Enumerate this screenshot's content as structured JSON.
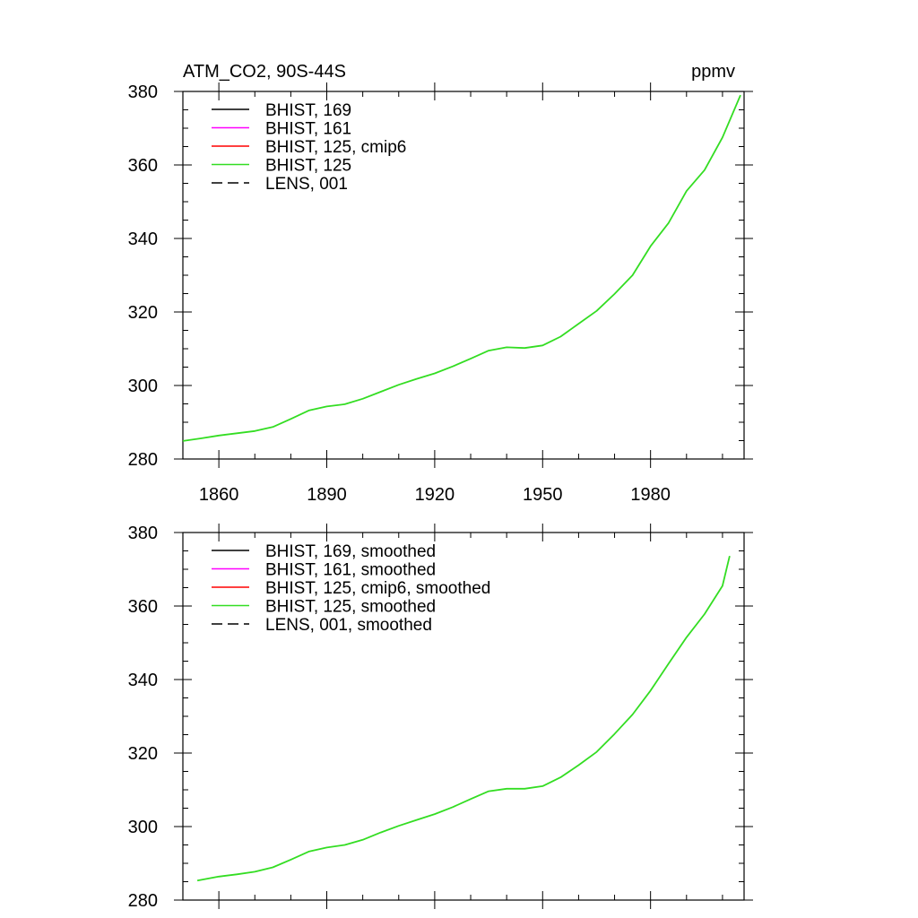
{
  "chart_data": [
    {
      "type": "line",
      "title_left": "ATM_CO2, 90S-44S",
      "title_right": "ppmv",
      "xlim": [
        1850,
        2006
      ],
      "ylim": [
        280,
        380
      ],
      "xticks": [
        1860,
        1890,
        1920,
        1950,
        1980
      ],
      "yticks": [
        280,
        300,
        320,
        340,
        360,
        380
      ],
      "x_tick_labels_shown": true,
      "legend": [
        {
          "label": "BHIST, 169",
          "color": "#000000",
          "dash": "solid"
        },
        {
          "label": "BHIST, 161",
          "color": "#ff00ff",
          "dash": "solid"
        },
        {
          "label": "BHIST, 125, cmip6",
          "color": "#ff0000",
          "dash": "solid"
        },
        {
          "label": "BHIST, 125",
          "color": "#33dd22",
          "dash": "solid"
        },
        {
          "label": "LENS, 001",
          "color": "#000000",
          "dash": "dashed"
        }
      ],
      "series": [
        {
          "name": "BHIST, 125",
          "color": "#33dd22",
          "x": [
            1850,
            1855,
            1860,
            1865,
            1870,
            1875,
            1880,
            1885,
            1890,
            1895,
            1900,
            1905,
            1910,
            1915,
            1920,
            1925,
            1930,
            1935,
            1940,
            1945,
            1950,
            1955,
            1960,
            1965,
            1970,
            1975,
            1980,
            1985,
            1990,
            1995,
            2000,
            2005
          ],
          "y": [
            284.9,
            285.6,
            286.4,
            287.0,
            287.6,
            288.7,
            290.9,
            293.2,
            294.3,
            294.9,
            296.4,
            298.3,
            300.2,
            301.8,
            303.3,
            305.2,
            307.3,
            309.5,
            310.4,
            310.2,
            310.9,
            313.3,
            316.8,
            320.3,
            324.9,
            330.0,
            337.9,
            344.2,
            352.9,
            358.6,
            367.5,
            379.0
          ]
        }
      ]
    },
    {
      "type": "line",
      "title_left": "",
      "title_right": "",
      "xlim": [
        1850,
        2006
      ],
      "ylim": [
        280,
        380
      ],
      "xticks": [
        1860,
        1890,
        1920,
        1950,
        1980
      ],
      "yticks": [
        280,
        300,
        320,
        340,
        360,
        380
      ],
      "x_tick_labels_shown": false,
      "legend": [
        {
          "label": "BHIST, 169, smoothed",
          "color": "#000000",
          "dash": "solid"
        },
        {
          "label": "BHIST, 161, smoothed",
          "color": "#ff00ff",
          "dash": "solid"
        },
        {
          "label": "BHIST, 125, cmip6, smoothed",
          "color": "#ff0000",
          "dash": "solid"
        },
        {
          "label": "BHIST, 125, smoothed",
          "color": "#33dd22",
          "dash": "solid"
        },
        {
          "label": "LENS, 001, smoothed",
          "color": "#000000",
          "dash": "dashed"
        }
      ],
      "series": [
        {
          "name": "BHIST, 125, smoothed",
          "color": "#33dd22",
          "x": [
            1854,
            1860,
            1865,
            1870,
            1875,
            1880,
            1885,
            1890,
            1895,
            1900,
            1905,
            1910,
            1915,
            1920,
            1925,
            1930,
            1935,
            1940,
            1945,
            1950,
            1955,
            1960,
            1965,
            1970,
            1975,
            1980,
            1985,
            1990,
            1995,
            2000,
            2002
          ],
          "y": [
            285.3,
            286.4,
            287.0,
            287.7,
            288.9,
            291.0,
            293.2,
            294.3,
            295.0,
            296.4,
            298.4,
            300.2,
            301.8,
            303.4,
            305.3,
            307.5,
            309.6,
            310.3,
            310.3,
            311.0,
            313.4,
            316.7,
            320.3,
            325.2,
            330.5,
            337.0,
            344.3,
            351.5,
            357.8,
            365.5,
            373.6
          ]
        }
      ]
    }
  ]
}
